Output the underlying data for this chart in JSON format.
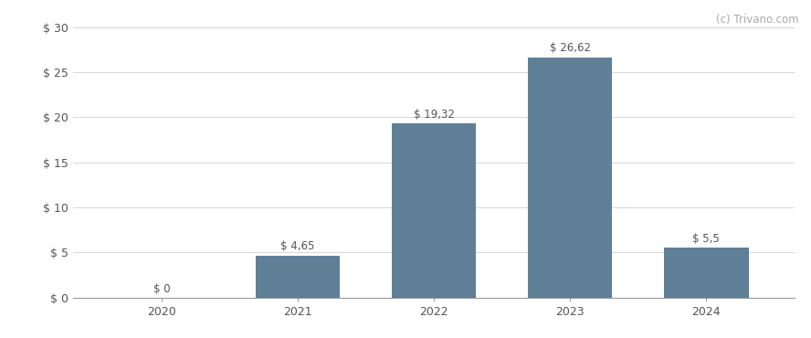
{
  "categories": [
    "2020",
    "2021",
    "2022",
    "2023",
    "2024"
  ],
  "values": [
    0,
    4.65,
    19.32,
    26.62,
    5.5
  ],
  "labels": [
    "$ 0",
    "$ 4,65",
    "$ 19,32",
    "$ 26,62",
    "$ 5,5"
  ],
  "bar_color": "#5f7f96",
  "background_color": "#ffffff",
  "ylim": [
    0,
    30
  ],
  "yticks": [
    0,
    5,
    10,
    15,
    20,
    25,
    30
  ],
  "ytick_labels": [
    "$ 0",
    "$ 5",
    "$ 10",
    "$ 15",
    "$ 20",
    "$ 25",
    "$ 30"
  ],
  "watermark": "(c) Trivano.com",
  "grid_color": "#d0d0d0",
  "label_color": "#555555",
  "tick_color": "#555555",
  "watermark_color": "#aaaaaa",
  "bar_width": 0.62,
  "label_fontsize": 8.5,
  "tick_fontsize": 9
}
